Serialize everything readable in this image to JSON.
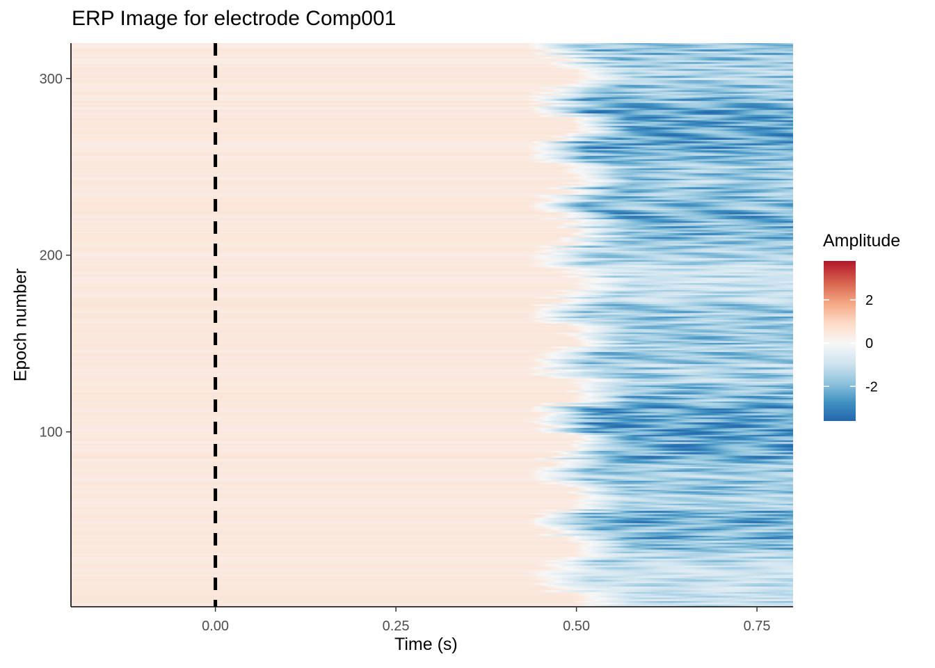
{
  "chart_data": {
    "type": "heatmap",
    "title": "ERP Image for electrode Comp001",
    "xlabel": "Time (s)",
    "ylabel": "Epoch number",
    "xlim": [
      -0.2,
      0.8
    ],
    "ylim": [
      1,
      320
    ],
    "x_ticks": [
      {
        "value": 0.0,
        "label": "0.00"
      },
      {
        "value": 0.25,
        "label": "0.25"
      },
      {
        "value": 0.5,
        "label": "0.50"
      },
      {
        "value": 0.75,
        "label": "0.75"
      }
    ],
    "y_ticks": [
      {
        "value": 100,
        "label": "100"
      },
      {
        "value": 200,
        "label": "200"
      },
      {
        "value": 300,
        "label": "300"
      }
    ],
    "n_epochs": 320,
    "stimulus_onset_line": {
      "x": 0.0,
      "style": "dashed",
      "color": "#000000"
    },
    "amplitude_pattern": {
      "baseline_amplitude": 0.5,
      "negative_onset_time_range": [
        0.43,
        0.5
      ],
      "late_negative_peak_range": [
        -3.5,
        -1.0
      ]
    },
    "legend": {
      "title": "Amplitude",
      "placement": "right",
      "range": [
        -3.6,
        3.8
      ],
      "ticks": [
        {
          "value": 2,
          "label": "2"
        },
        {
          "value": 0,
          "label": "0"
        },
        {
          "value": -2,
          "label": "-2"
        }
      ],
      "palette": [
        "#2166ac",
        "#4393c3",
        "#92c5de",
        "#d1e5f0",
        "#f7f7f7",
        "#fddbc7",
        "#f4a582",
        "#d6604d",
        "#b2182b"
      ]
    },
    "grid": false
  }
}
